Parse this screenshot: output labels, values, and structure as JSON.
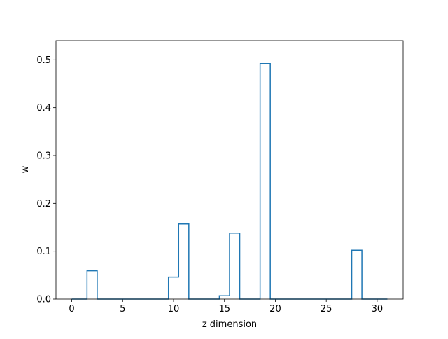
{
  "chart_data": {
    "type": "step",
    "title": "",
    "xlabel": "z dimension",
    "ylabel": "w",
    "xlim": [
      -1.55,
      32.55
    ],
    "ylim": [
      0,
      0.54
    ],
    "xticks": [
      0,
      5,
      10,
      15,
      20,
      25,
      30
    ],
    "yticks": [
      0.0,
      0.1,
      0.2,
      0.3,
      0.4,
      0.5
    ],
    "xtick_labels": [
      "0",
      "5",
      "10",
      "15",
      "20",
      "25",
      "30"
    ],
    "ytick_labels": [
      "0.0",
      "0.1",
      "0.2",
      "0.3",
      "0.4",
      "0.5"
    ],
    "grid": false,
    "line_color": "#1f77b4",
    "x": [
      0,
      1,
      2,
      3,
      4,
      5,
      6,
      7,
      8,
      9,
      10,
      11,
      12,
      13,
      14,
      15,
      16,
      17,
      18,
      19,
      20,
      21,
      22,
      23,
      24,
      25,
      26,
      27,
      28,
      29,
      30,
      31
    ],
    "values": [
      0,
      0,
      0.059,
      0,
      0,
      0,
      0,
      0,
      0,
      0,
      0.046,
      0.157,
      0,
      0,
      0,
      0.007,
      0.138,
      0,
      0,
      0.492,
      0,
      0,
      0,
      0,
      0,
      0,
      0,
      0,
      0.102,
      0,
      0,
      0
    ]
  }
}
